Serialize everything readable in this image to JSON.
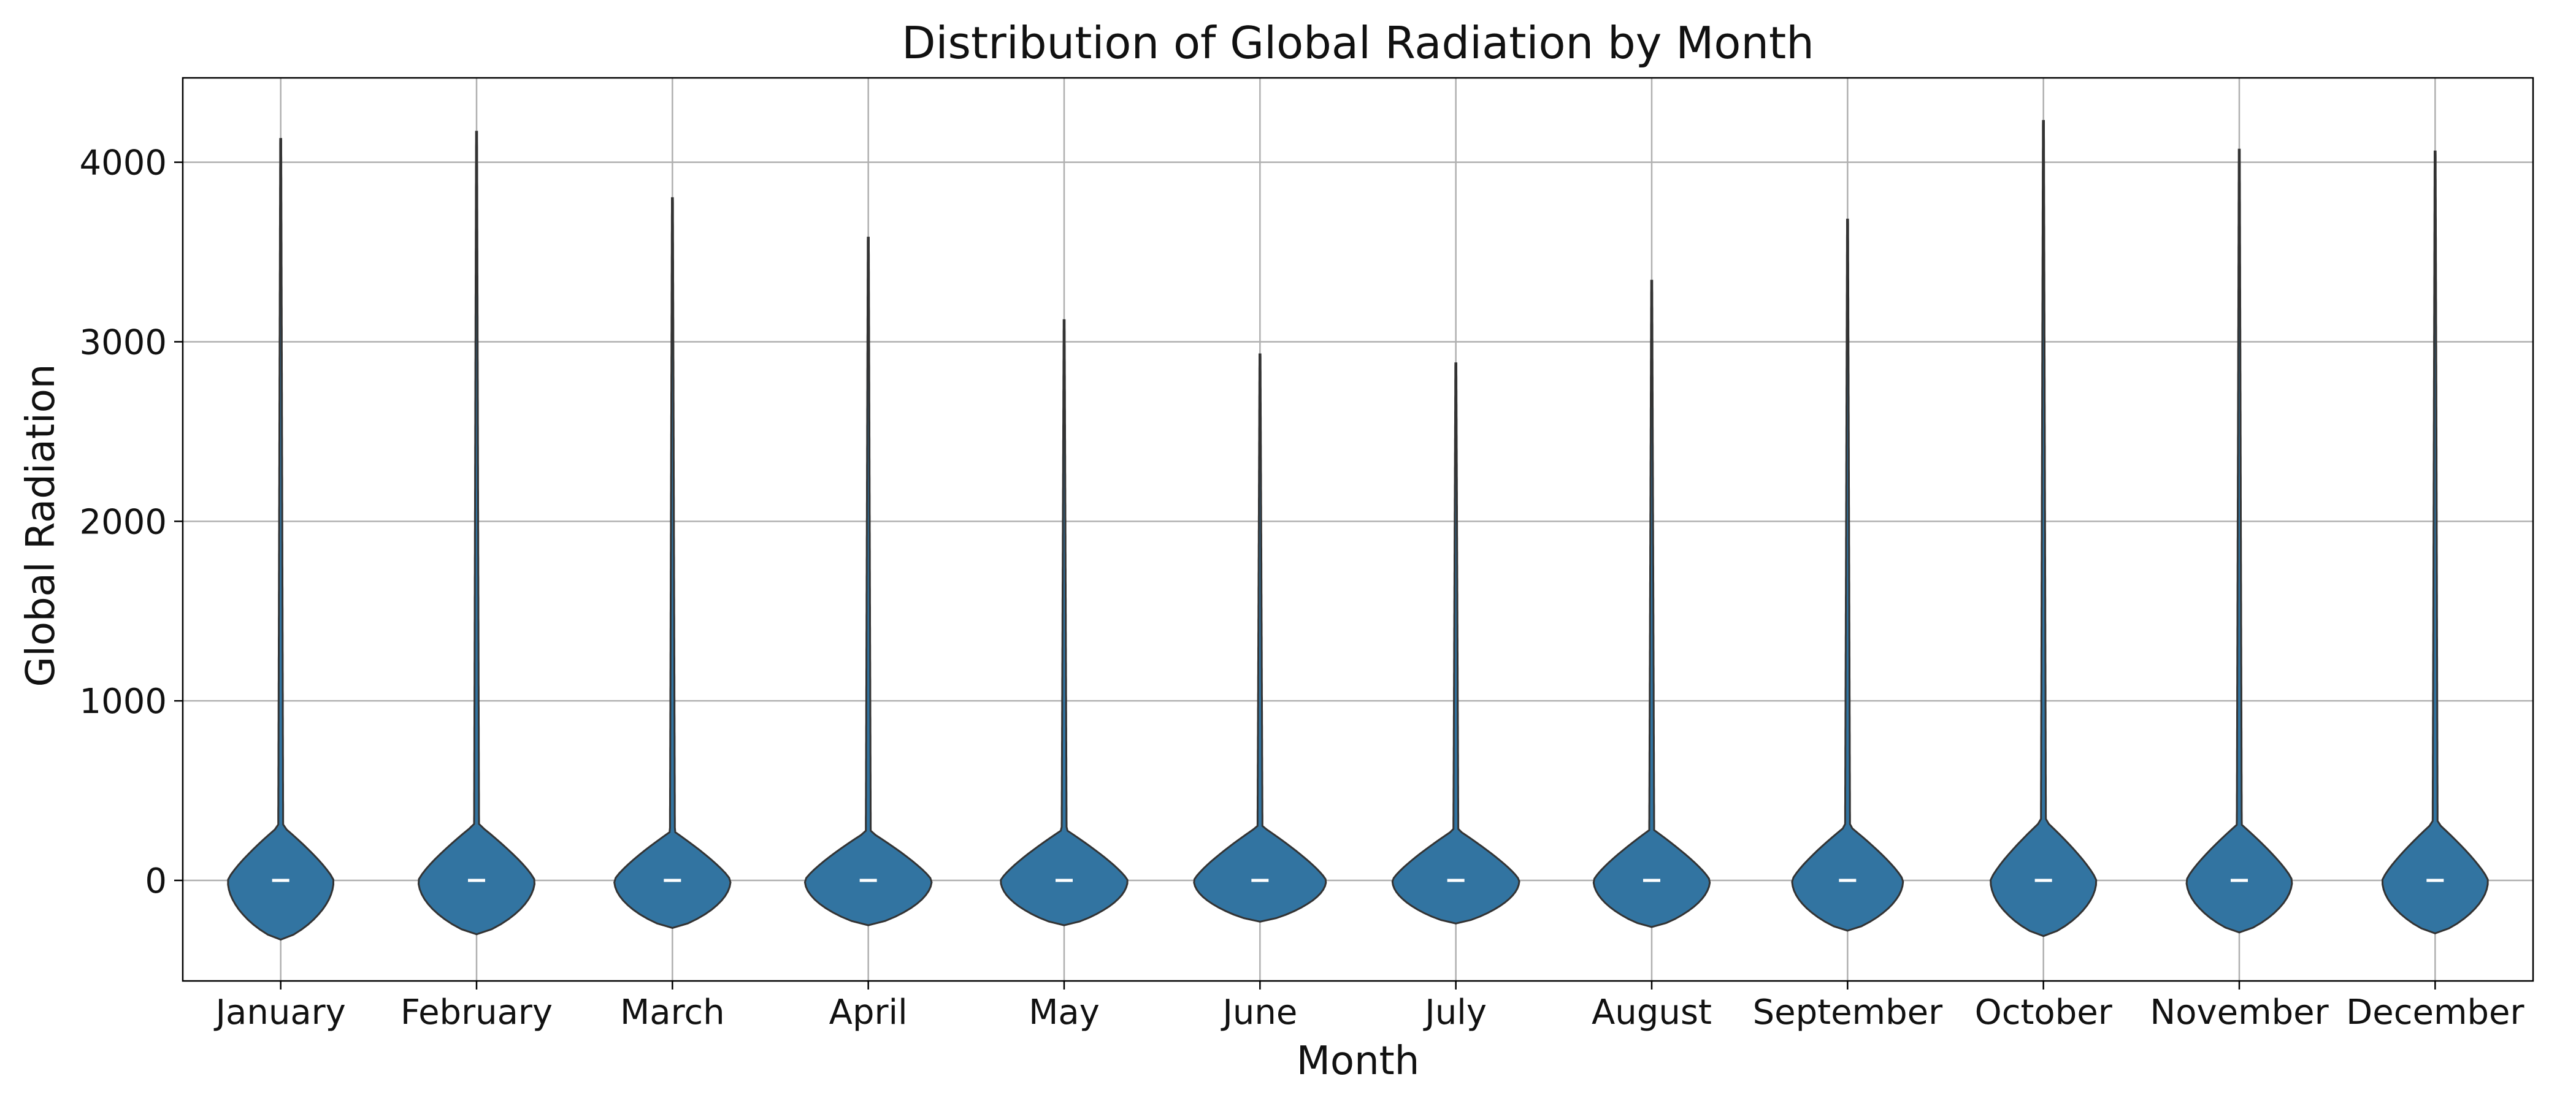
{
  "chart_data": {
    "type": "violin",
    "title": "Distribution of Global Radiation by Month",
    "xlabel": "Month",
    "ylabel": "Global Radiation",
    "ylim": [
      -560,
      4470
    ],
    "yticks": [
      0,
      1000,
      2000,
      3000,
      4000
    ],
    "grid": true,
    "legend": "none",
    "colors": {
      "violin_fill": "#3274a1",
      "violin_edge": "#333333",
      "grid": "#b0b0b0",
      "median_line": "#ffffff",
      "axis": "#000000"
    },
    "categories": [
      "January",
      "February",
      "March",
      "April",
      "May",
      "June",
      "July",
      "August",
      "September",
      "October",
      "November",
      "December"
    ],
    "violins": [
      {
        "category": "January",
        "min": -330,
        "max": 4130,
        "median": 0,
        "body_top": 300,
        "body_bottom": -330,
        "max_density": 1.0
      },
      {
        "category": "February",
        "min": -300,
        "max": 4170,
        "median": 0,
        "body_top": 310,
        "body_bottom": -300,
        "max_density": 1.1
      },
      {
        "category": "March",
        "min": -265,
        "max": 3800,
        "median": 0,
        "body_top": 270,
        "body_bottom": -265,
        "max_density": 1.1
      },
      {
        "category": "April",
        "min": -250,
        "max": 3580,
        "median": 0,
        "body_top": 270,
        "body_bottom": -250,
        "max_density": 1.2
      },
      {
        "category": "May",
        "min": -250,
        "max": 3120,
        "median": 0,
        "body_top": 280,
        "body_bottom": -250,
        "max_density": 1.2
      },
      {
        "category": "June",
        "min": -230,
        "max": 2930,
        "median": 0,
        "body_top": 300,
        "body_bottom": -230,
        "max_density": 1.25
      },
      {
        "category": "July",
        "min": -240,
        "max": 2880,
        "median": 0,
        "body_top": 280,
        "body_bottom": -240,
        "max_density": 1.2
      },
      {
        "category": "August",
        "min": -260,
        "max": 3340,
        "median": 0,
        "body_top": 280,
        "body_bottom": -260,
        "max_density": 1.1
      },
      {
        "category": "September",
        "min": -280,
        "max": 3680,
        "median": 0,
        "body_top": 300,
        "body_bottom": -280,
        "max_density": 1.05
      },
      {
        "category": "October",
        "min": -310,
        "max": 4230,
        "median": 0,
        "body_top": 330,
        "body_bottom": -310,
        "max_density": 1.0
      },
      {
        "category": "November",
        "min": -290,
        "max": 4070,
        "median": 0,
        "body_top": 310,
        "body_bottom": -290,
        "max_density": 1.0
      },
      {
        "category": "December",
        "min": -295,
        "max": 4060,
        "median": 0,
        "body_top": 320,
        "body_bottom": -295,
        "max_density": 1.0
      }
    ]
  }
}
